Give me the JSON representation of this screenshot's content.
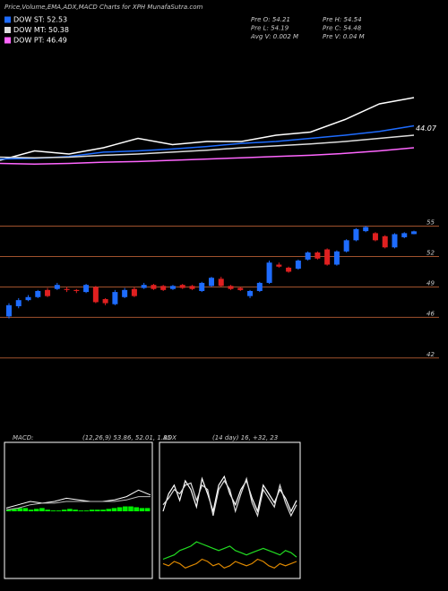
{
  "header": {
    "title": "Price,Volume,EMA,ADX,MACD Charts for XPH MunafaSutra.com"
  },
  "stats": [
    "Pre  O: 54.21",
    "Pre  H: 54.54",
    "Pre  L: 54.19",
    "Pre  C: 54.48",
    "Avg  V: 0.002  M",
    "Pre  V: 0.04  M"
  ],
  "chart_data": [
    {
      "type": "line",
      "ylim": [
        36,
        56
      ],
      "yticks": [
        44.07
      ],
      "series": [
        {
          "color": "#ffffff",
          "values": [
            39,
            40.5,
            40,
            41,
            42.5,
            41.5,
            42,
            42,
            43,
            43.5,
            45.5,
            48,
            49
          ]
        },
        {
          "name": "DOW ST: 52.53",
          "color": "#1e6cff",
          "values": [
            39.2,
            39.3,
            39.6,
            40.3,
            40.5,
            40.8,
            41.2,
            41.7,
            42.0,
            42.5,
            43.0,
            43.6,
            44.5
          ]
        },
        {
          "name": "DOW MT: 50.38",
          "color": "#dddddd",
          "values": [
            39.5,
            39.4,
            39.5,
            39.8,
            40,
            40.3,
            40.6,
            41,
            41.3,
            41.6,
            42,
            42.5,
            43
          ]
        },
        {
          "name": "DOW PT: 46.49",
          "color": "#ff66ff",
          "values": [
            38.5,
            38.4,
            38.5,
            38.7,
            38.8,
            39,
            39.2,
            39.4,
            39.6,
            39.8,
            40.1,
            40.5,
            41
          ]
        }
      ]
    },
    {
      "type": "candlestick",
      "ylim": [
        35.8,
        56.1
      ],
      "yticks": [
        55,
        52,
        49,
        46,
        42
      ],
      "up_color": "#1e6cff",
      "down_color": "#e02020",
      "grid_color": "#a0522d",
      "open": [
        46.1,
        47.1,
        47.7,
        48.0,
        48.7,
        48.8,
        48.8,
        48.7,
        48.5,
        49.0,
        47.8,
        47.3,
        48.0,
        48.8,
        48.9,
        49.2,
        49.1,
        48.8,
        49.2,
        49.1,
        48.6,
        49.1,
        49.8,
        49.1,
        48.9,
        48.1,
        48.6,
        49.4,
        51.2,
        50.9,
        50.8,
        51.7,
        52.4,
        52.7,
        51.2,
        52.5,
        53.6,
        54.5,
        54.3,
        54.0,
        52.9,
        53.9,
        54.21
      ],
      "high": [
        47.4,
        47.9,
        48.2,
        48.7,
        48.9,
        49.4,
        49.0,
        48.8,
        49.3,
        49.1,
        47.9,
        48.7,
        48.9,
        49.0,
        49.4,
        49.3,
        49.2,
        49.2,
        49.3,
        49.2,
        49.5,
        50.0,
        50.0,
        49.2,
        49.0,
        48.7,
        49.5,
        51.6,
        51.4,
        51.0,
        51.7,
        52.5,
        52.5,
        52.8,
        52.6,
        53.7,
        54.8,
        55.0,
        54.4,
        54.1,
        54.3,
        54.4,
        54.54
      ],
      "low": [
        45.9,
        46.9,
        47.6,
        47.9,
        48.0,
        48.7,
        48.5,
        48.4,
        48.4,
        47.4,
        47.2,
        47.2,
        47.9,
        48.0,
        48.8,
        48.7,
        48.6,
        48.7,
        48.8,
        48.7,
        48.5,
        49.0,
        49.0,
        48.7,
        48.6,
        47.9,
        48.5,
        49.3,
        50.9,
        50.4,
        50.7,
        51.6,
        51.7,
        51.1,
        51.1,
        52.4,
        53.5,
        54.4,
        53.5,
        52.8,
        52.8,
        53.8,
        54.19
      ],
      "close": [
        47.2,
        47.7,
        48.0,
        48.6,
        48.1,
        49.2,
        48.7,
        48.6,
        49.2,
        47.5,
        47.4,
        48.5,
        48.7,
        48.1,
        49.2,
        48.8,
        48.7,
        49.1,
        48.9,
        48.8,
        49.4,
        49.9,
        49.1,
        48.8,
        48.7,
        48.6,
        49.4,
        51.4,
        51.0,
        50.5,
        51.6,
        52.4,
        51.8,
        51.2,
        52.5,
        53.6,
        54.7,
        54.9,
        53.6,
        52.9,
        54.2,
        54.3,
        54.48
      ]
    },
    {
      "type": "macd",
      "title": "MACD:",
      "subtitle": "(12,26,9) 53.86, 52.01, 1.85",
      "ylim": [
        -4,
        4
      ],
      "series": [
        {
          "color": "#ffffff",
          "values": [
            0.2,
            0.4,
            0.6,
            0.5,
            0.6,
            0.8,
            0.7,
            0.6,
            0.6,
            0.7,
            0.9,
            1.3,
            1.0
          ]
        },
        {
          "color": "#bbbbbb",
          "values": [
            0.1,
            0.2,
            0.4,
            0.5,
            0.5,
            0.6,
            0.6,
            0.6,
            0.6,
            0.6,
            0.7,
            0.9,
            0.9
          ]
        }
      ],
      "histogram": {
        "color": "#00ee00",
        "values": [
          0.1,
          0.15,
          0.2,
          0.2,
          0.1,
          0.15,
          0.2,
          0.1,
          0.05,
          0.05,
          0.1,
          0.15,
          0.1,
          0.05,
          0.05,
          0.1,
          0.1,
          0.1,
          0.15,
          0.2,
          0.25,
          0.3,
          0.3,
          0.25,
          0.2,
          0.2
        ]
      }
    },
    {
      "type": "adx",
      "title": "ADX",
      "subtitle": "(14 day) 16, +32, 23",
      "ylim": [
        0,
        60
      ],
      "series": [
        {
          "color": "#ffffff",
          "values": [
            30,
            38,
            42,
            35,
            44,
            40,
            32,
            45,
            38,
            30,
            42,
            46,
            38,
            33,
            40,
            44,
            36,
            30,
            42,
            38,
            34,
            40,
            36,
            30,
            35
          ]
        },
        {
          "color": "#dddddd",
          "values": [
            33,
            36,
            40,
            38,
            42,
            43,
            35,
            42,
            40,
            28,
            40,
            44,
            40,
            30,
            38,
            45,
            34,
            28,
            40,
            36,
            32,
            42,
            34,
            28,
            33
          ]
        },
        {
          "color": "#22dd22",
          "values": [
            8,
            9,
            10,
            12,
            13,
            14,
            16,
            15,
            14,
            13,
            12,
            13,
            14,
            12,
            11,
            10,
            11,
            12,
            13,
            12,
            11,
            10,
            12,
            11,
            9
          ]
        },
        {
          "color": "#dd8800",
          "values": [
            6,
            5,
            7,
            6,
            4,
            5,
            6,
            8,
            7,
            5,
            6,
            4,
            5,
            7,
            6,
            5,
            6,
            8,
            7,
            5,
            4,
            6,
            5,
            6,
            7
          ]
        }
      ]
    }
  ]
}
